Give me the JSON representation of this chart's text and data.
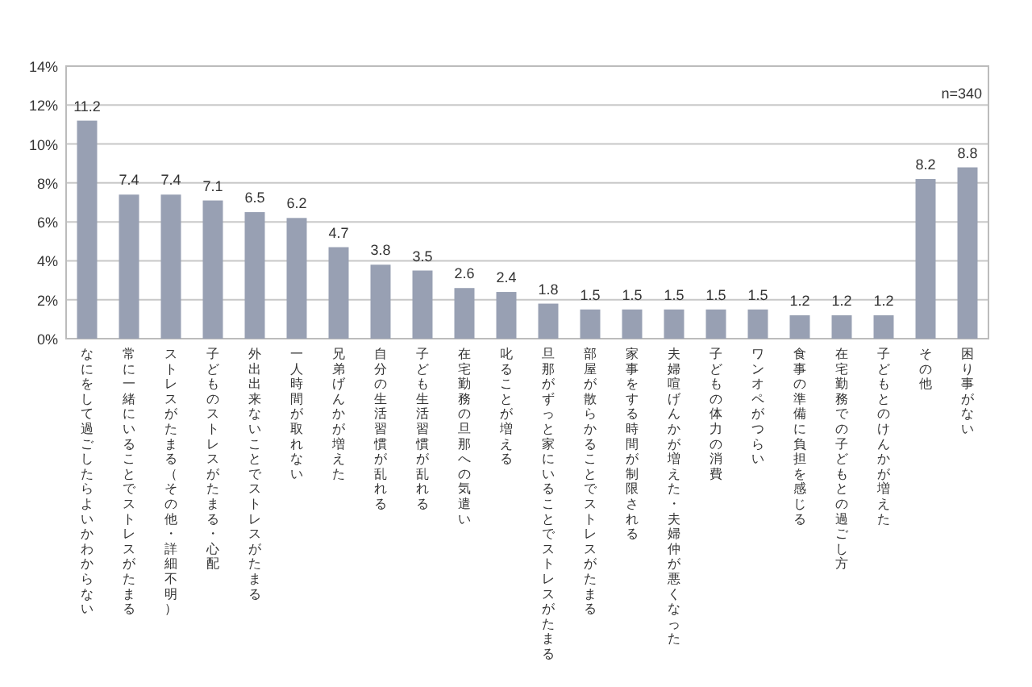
{
  "chart_data": {
    "type": "bar",
    "categories": [
      "なにをして過ごしたらよいかわからない",
      "常に一緒にいることでストレスがたまる",
      "ストレスがたまる（その他・詳細不明）",
      "子どものストレスがたまる・心配",
      "外出出来ないことでストレスがたまる",
      "一人時間が取れない",
      "兄弟げんかが増えた",
      "自分の生活習慣が乱れる",
      "子ども生活習慣が乱れる",
      "在宅勤務の旦那への気遣い",
      "叱ることが増える",
      "旦那がずっと家にいることでストレスがたまる",
      "部屋が散らかることでストレスがたまる",
      "家事をする時間が制限される",
      "夫婦喧げんかが増えた・夫婦仲が悪くなった",
      "子どもの体力の消費",
      "ワンオペがつらい",
      "食事の準備に負担を感じる",
      "在宅勤務での子どもとの過ごし方",
      "子どもとのけんかが増えた",
      "その他",
      "困り事がない"
    ],
    "values": [
      11.2,
      7.4,
      7.4,
      7.1,
      6.5,
      6.2,
      4.7,
      3.8,
      3.5,
      2.6,
      2.4,
      1.8,
      1.5,
      1.5,
      1.5,
      1.5,
      1.5,
      1.2,
      1.2,
      1.2,
      8.2,
      8.8
    ],
    "color": "#98a0b3",
    "ylim": [
      0,
      14
    ],
    "yticks": [
      {
        "value": 0,
        "label": "0%"
      },
      {
        "value": 2,
        "label": "2%"
      },
      {
        "value": 4,
        "label": "4%"
      },
      {
        "value": 6,
        "label": "6%"
      },
      {
        "value": 8,
        "label": "8%"
      },
      {
        "value": 10,
        "label": "10%"
      },
      {
        "value": 12,
        "label": "12%"
      },
      {
        "value": 14,
        "label": "14%"
      }
    ],
    "grid": "y",
    "data_labels": true,
    "annotations": [
      "n=340"
    ]
  }
}
